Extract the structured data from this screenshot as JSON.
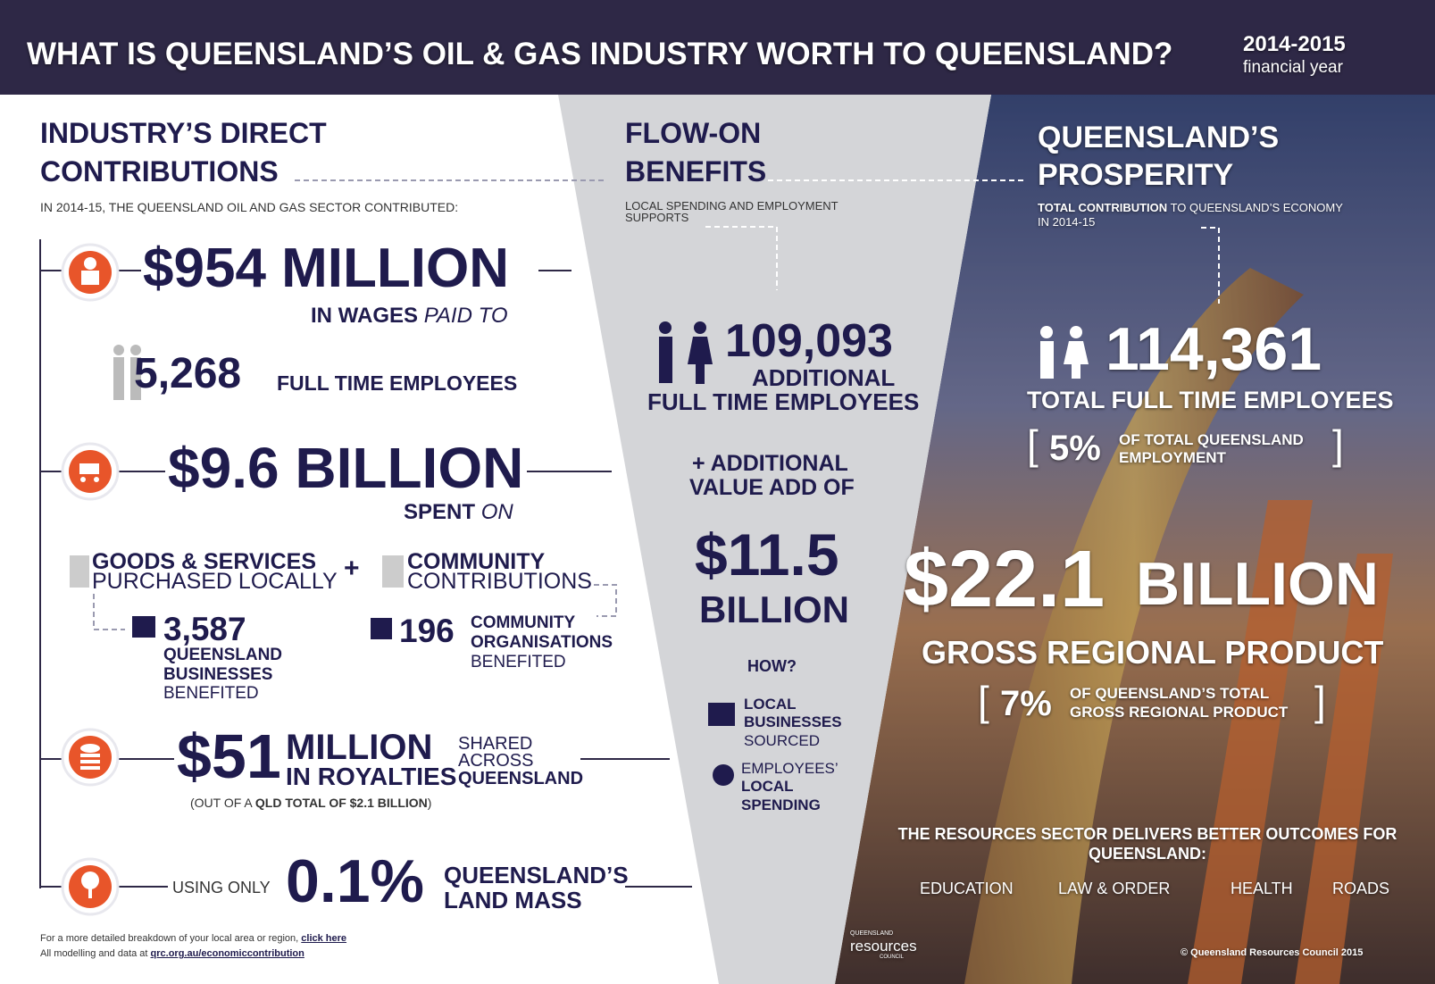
{
  "header": {
    "title": "WHAT IS QUEENSLAND’S OIL & GAS INDUSTRY WORTH TO QUEENSLAND?",
    "period": "2014-2015",
    "period_note": "financial year"
  },
  "direct": {
    "heading": [
      "INDUSTRY’S DIRECT",
      "CONTRIBUTIONS"
    ],
    "intro": "IN 2014-15, THE QUEENSLAND OIL AND GAS SECTOR CONTRIBUTED:",
    "wages": {
      "amount": "$954 MILLION",
      "bold": "IN WAGES",
      "italic": "PAID TO",
      "employees": "5,268",
      "employees_label": "FULL TIME EMPLOYEES"
    },
    "spend": {
      "amount": "$9.6 BILLION",
      "bold": "SPENT",
      "italic": "ON",
      "goods": [
        "GOODS & SERVICES",
        "PURCHASED LOCALLY"
      ],
      "plus": "+",
      "community": [
        "COMMUNITY",
        "CONTRIBUTIONS"
      ],
      "businesses": "3,587",
      "businesses_label": [
        "QUEENSLAND",
        "BUSINESSES"
      ],
      "businesses_note": "BENEFITED",
      "orgs": "196",
      "orgs_label": [
        "COMMUNITY",
        "ORGANISATIONS"
      ],
      "orgs_note": "BENEFITED"
    },
    "royalties": {
      "amount": "$51",
      "unit": "MILLION",
      "label": "IN ROYALTIES",
      "shared": [
        "SHARED",
        "ACROSS",
        "QUEENSLAND"
      ],
      "note_pre": "(OUT OF A",
      "note_bold": "QLD TOTAL OF $2.1 BILLION",
      "note_post": ")"
    },
    "land": {
      "pre": "USING ONLY",
      "value": "0.1%",
      "label": [
        "QUEENSLAND’S",
        "LAND MASS"
      ]
    },
    "footnote": {
      "line1": "For a more detailed breakdown of your local area or region,",
      "link": "click here",
      "line2": "All modelling and data at",
      "url": "qrc.org.au/economiccontribution"
    }
  },
  "flow_on": {
    "heading": [
      "FLOW-ON",
      "BENEFITS"
    ],
    "intro": "LOCAL SPENDING AND EMPLOYMENT SUPPORTS",
    "employees": "109,093",
    "employees_label": [
      "ADDITIONAL",
      "FULL TIME EMPLOYEES"
    ],
    "value_add_label": [
      "+ ADDITIONAL",
      "VALUE ADD OF"
    ],
    "value_add": "$11.5",
    "value_add_unit": "BILLION",
    "how": "HOW?",
    "sources": [
      [
        "LOCAL",
        "BUSINESSES",
        "SOURCED"
      ],
      [
        "EMPLOYEES’",
        "LOCAL",
        "SPENDING"
      ]
    ]
  },
  "prosperity": {
    "heading": [
      "QUEENSLAND’S",
      "PROSPERITY"
    ],
    "intro_bold": "TOTAL CONTRIBUTION",
    "intro_rest": "TO QUEENSLAND’S ECONOMY IN 2014-15",
    "employees": "114,361",
    "employees_label": "TOTAL FULL TIME EMPLOYEES",
    "bracket_open": "[",
    "bracket_close": "]",
    "employment_share": "5%",
    "employment_share_label": [
      "OF TOTAL QUEENSLAND",
      "EMPLOYMENT"
    ],
    "grp": "$22.1",
    "grp_unit": "BILLION",
    "grp_label": "GROSS REGIONAL PRODUCT",
    "grp_share": "7%",
    "grp_share_label": [
      "OF QUEENSLAND’S TOTAL",
      "GROSS REGIONAL PRODUCT"
    ],
    "outcomes_title": "THE RESOURCES SECTOR DELIVERS BETTER OUTCOMES FOR QUEENSLAND:",
    "outcomes": [
      "EDUCATION",
      "LAW & ORDER",
      "HEALTH",
      "ROADS"
    ],
    "logo": [
      "QUEENSLAND",
      "resources",
      "COUNCIL"
    ],
    "copyright": "© Queensland Resources Council 2015"
  }
}
